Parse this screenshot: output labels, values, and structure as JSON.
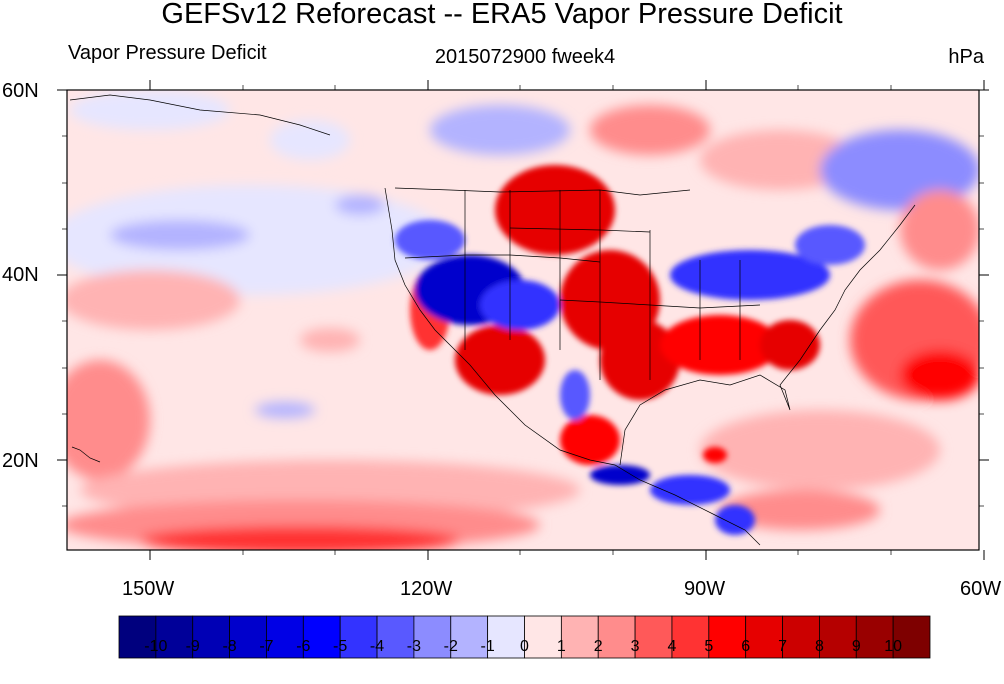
{
  "title": "GEFSv12 Reforecast -- ERA5 Vapor Pressure Deficit",
  "subtitle_left": "Vapor Pressure Deficit",
  "subtitle_center": "2015072900 fweek4",
  "subtitle_right": "hPa",
  "lat_labels": [
    "60N",
    "40N",
    "20N"
  ],
  "lon_labels": [
    "150W",
    "120W",
    "90W",
    "60W"
  ],
  "colorbar": {
    "labels": [
      "-10",
      "-9",
      "-8",
      "-7",
      "-6",
      "-5",
      "-4",
      "-3",
      "-2",
      "-1",
      "0",
      "1",
      "2",
      "3",
      "4",
      "5",
      "6",
      "7",
      "8",
      "9",
      "10"
    ],
    "colors": [
      "#00007e",
      "#000099",
      "#0000b5",
      "#0000cc",
      "#0000e6",
      "#0000ff",
      "#3333ff",
      "#5959ff",
      "#8c8cff",
      "#b3b3ff",
      "#e6e6ff",
      "#ffe6e6",
      "#ffb3b3",
      "#ff8c8c",
      "#ff5959",
      "#ff3333",
      "#ff0000",
      "#e60000",
      "#cc0000",
      "#b50000",
      "#990000",
      "#7e0000"
    ]
  }
}
